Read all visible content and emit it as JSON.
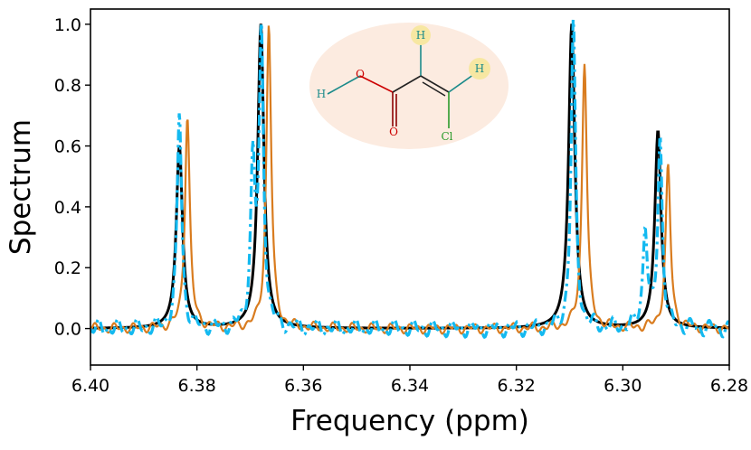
{
  "chart_data": {
    "type": "line",
    "title": "",
    "xlabel": "Frequency (ppm)",
    "ylabel": "Spectrum",
    "xlim": [
      6.4,
      6.28
    ],
    "ylim": [
      -0.12,
      1.05
    ],
    "x_reversed": true,
    "xticks": [
      "6.40",
      "6.38",
      "6.36",
      "6.34",
      "6.32",
      "6.30",
      "6.28"
    ],
    "yticks": [
      "0.0",
      "0.2",
      "0.4",
      "0.6",
      "0.8",
      "1.0"
    ],
    "grid": false,
    "legend": "none",
    "series": [
      {
        "color": "#000000",
        "style": "solid",
        "baseline": 0.0,
        "peaks": [
          {
            "x": 6.3833,
            "height": 0.6
          },
          {
            "x": 6.368,
            "height": 1.0
          },
          {
            "x": 6.3096,
            "height": 1.0
          },
          {
            "x": 6.2934,
            "height": 0.65
          }
        ]
      },
      {
        "color": "#d97c1f",
        "style": "solid",
        "baseline": 0.0,
        "peaks": [
          {
            "x": 6.3818,
            "height": 0.7
          },
          {
            "x": 6.3665,
            "height": 1.0
          },
          {
            "x": 6.3072,
            "height": 0.88
          },
          {
            "x": 6.2915,
            "height": 0.53
          }
        ]
      },
      {
        "color": "#13b9f0",
        "style": "dash-dot",
        "baseline": 0.0,
        "peaks": [
          {
            "x": 6.3833,
            "height": 0.71
          },
          {
            "x": 6.3695,
            "height": 0.52
          },
          {
            "x": 6.3679,
            "height": 0.95
          },
          {
            "x": 6.3093,
            "height": 1.0
          },
          {
            "x": 6.2958,
            "height": 0.33
          },
          {
            "x": 6.293,
            "height": 0.62
          }
        ]
      }
    ]
  },
  "molecule": {
    "atoms": [
      "O",
      "H",
      "O",
      "H",
      "H",
      "Cl"
    ]
  }
}
